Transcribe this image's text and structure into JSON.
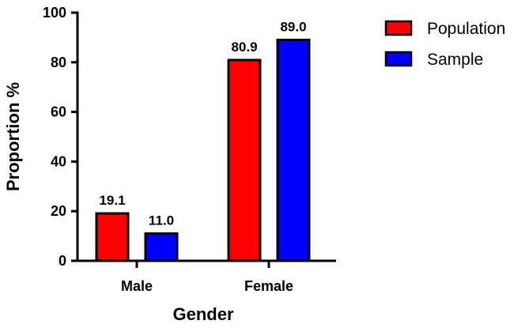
{
  "chart_data": {
    "type": "bar",
    "categories": [
      "Male",
      "Female"
    ],
    "series": [
      {
        "name": "Population",
        "values": [
          19.1,
          80.9
        ],
        "labels": [
          "19.1",
          "80.9"
        ],
        "color": "#ff0000"
      },
      {
        "name": "Sample",
        "values": [
          11.0,
          89.0
        ],
        "labels": [
          "11.0",
          "89.0"
        ],
        "color": "#0000ff"
      }
    ],
    "xlabel": "Gender",
    "ylabel": "Proportion %",
    "ylim": [
      0,
      100
    ],
    "yticks": [
      0,
      20,
      40,
      60,
      80,
      100
    ],
    "grid": false,
    "legend_position": "top-right"
  }
}
